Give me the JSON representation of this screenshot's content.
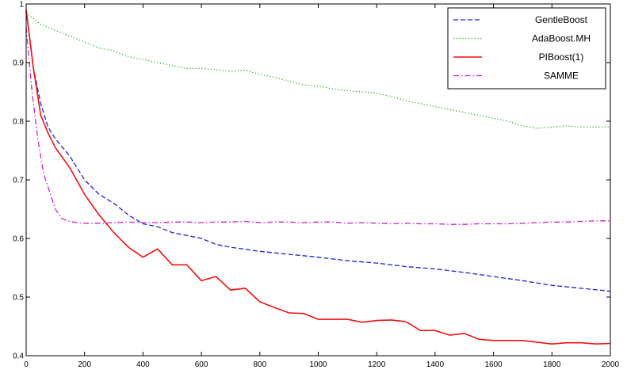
{
  "chart_data": {
    "type": "line",
    "title": "",
    "xlabel": "",
    "ylabel": "",
    "xlim": [
      0,
      2000
    ],
    "ylim": [
      0.4,
      1.0
    ],
    "xticks": [
      "0",
      "200",
      "400",
      "600",
      "800",
      "1000",
      "1200",
      "1400",
      "1600",
      "1800",
      "2000"
    ],
    "yticks": [
      "0.4",
      "0.5",
      "0.6",
      "0.7",
      "0.8",
      "0.9",
      "1"
    ],
    "grid": false,
    "legend_position": "top-right",
    "series": [
      {
        "name": "GentleBoost",
        "color": "#1f1fdd",
        "dash": "dashed",
        "x": [
          0,
          25,
          50,
          75,
          100,
          150,
          200,
          250,
          300,
          350,
          400,
          450,
          500,
          550,
          600,
          650,
          700,
          800,
          900,
          1000,
          1100,
          1200,
          1300,
          1400,
          1500,
          1600,
          1700,
          1800,
          1900,
          2000
        ],
        "y": [
          0.99,
          0.89,
          0.83,
          0.79,
          0.77,
          0.74,
          0.7,
          0.675,
          0.66,
          0.64,
          0.625,
          0.62,
          0.61,
          0.605,
          0.6,
          0.59,
          0.585,
          0.578,
          0.573,
          0.568,
          0.562,
          0.558,
          0.552,
          0.548,
          0.542,
          0.535,
          0.528,
          0.52,
          0.515,
          0.51
        ]
      },
      {
        "name": "AdaBoost.MH",
        "color": "#22aa22",
        "dash": "dotted",
        "x": [
          0,
          50,
          100,
          150,
          200,
          250,
          300,
          350,
          400,
          450,
          500,
          550,
          600,
          650,
          700,
          750,
          800,
          850,
          900,
          950,
          1000,
          1050,
          1100,
          1150,
          1200,
          1250,
          1300,
          1350,
          1400,
          1450,
          1500,
          1550,
          1600,
          1650,
          1700,
          1750,
          1800,
          1850,
          1900,
          1950,
          2000
        ],
        "y": [
          0.985,
          0.965,
          0.955,
          0.945,
          0.935,
          0.925,
          0.92,
          0.91,
          0.905,
          0.9,
          0.895,
          0.89,
          0.89,
          0.888,
          0.885,
          0.887,
          0.88,
          0.875,
          0.868,
          0.862,
          0.86,
          0.855,
          0.852,
          0.85,
          0.848,
          0.842,
          0.835,
          0.83,
          0.825,
          0.82,
          0.815,
          0.81,
          0.805,
          0.8,
          0.792,
          0.788,
          0.79,
          0.792,
          0.79,
          0.79,
          0.79
        ]
      },
      {
        "name": "PIBoost(1)",
        "color": "#ee1111",
        "dash": "solid",
        "x": [
          0,
          25,
          50,
          75,
          100,
          150,
          200,
          250,
          300,
          350,
          400,
          450,
          500,
          550,
          600,
          650,
          700,
          750,
          800,
          850,
          900,
          950,
          1000,
          1100,
          1150,
          1200,
          1250,
          1300,
          1350,
          1400,
          1450,
          1500,
          1550,
          1600,
          1700,
          1800,
          1850,
          1900,
          1950,
          2000
        ],
        "y": [
          0.99,
          0.89,
          0.81,
          0.78,
          0.755,
          0.72,
          0.675,
          0.64,
          0.61,
          0.585,
          0.568,
          0.582,
          0.555,
          0.555,
          0.528,
          0.535,
          0.512,
          0.515,
          0.492,
          0.482,
          0.473,
          0.472,
          0.462,
          0.462,
          0.457,
          0.46,
          0.461,
          0.458,
          0.443,
          0.443,
          0.435,
          0.438,
          0.428,
          0.426,
          0.426,
          0.42,
          0.422,
          0.422,
          0.42,
          0.421
        ]
      },
      {
        "name": "SAMME",
        "color": "#cc22cc",
        "dash": "dashdot",
        "x": [
          0,
          20,
          40,
          60,
          80,
          100,
          120,
          140,
          160,
          180,
          200,
          250,
          300,
          350,
          400,
          450,
          500,
          550,
          600,
          650,
          700,
          750,
          800,
          850,
          900,
          950,
          1000,
          1050,
          1100,
          1150,
          1200,
          1250,
          1300,
          1350,
          1400,
          1450,
          1500,
          1550,
          1600,
          1650,
          1700,
          1750,
          1800,
          1850,
          1900,
          1950,
          2000
        ],
        "y": [
          0.96,
          0.85,
          0.77,
          0.71,
          0.68,
          0.65,
          0.635,
          0.63,
          0.628,
          0.627,
          0.626,
          0.626,
          0.627,
          0.628,
          0.627,
          0.627,
          0.628,
          0.628,
          0.627,
          0.628,
          0.628,
          0.629,
          0.627,
          0.628,
          0.628,
          0.627,
          0.628,
          0.628,
          0.626,
          0.627,
          0.626,
          0.625,
          0.626,
          0.625,
          0.625,
          0.624,
          0.624,
          0.625,
          0.625,
          0.625,
          0.626,
          0.627,
          0.628,
          0.628,
          0.629,
          0.63,
          0.63
        ]
      }
    ]
  }
}
